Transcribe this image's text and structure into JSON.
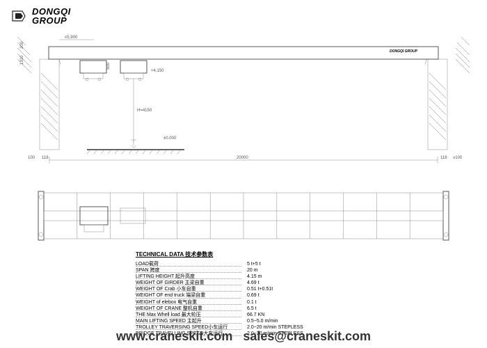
{
  "logo": {
    "line1": "DONGQI",
    "line2": "GROUP"
  },
  "colors": {
    "line_dark": "#333333",
    "line_med": "#555555",
    "line_light": "#888888",
    "hatch": "#777777",
    "background": "#ffffff",
    "text": "#333333"
  },
  "elevation": {
    "dimensions": {
      "span": "20000",
      "height_H": "H=4150",
      "left_small_1": "200",
      "left_small_2": "1310",
      "left_bottom_1": "100",
      "left_bottom_2": "118",
      "right_bottom_1": "118",
      "right_bottom_2": "≥100",
      "top_left": "≤5,900",
      "hoist_dim": "500",
      "hoist_level": "+4,150",
      "ground_level": "±0.000"
    }
  },
  "plan": {
    "grid_divisions": 12
  },
  "technical_data": {
    "title": "TECHNICAL DATA 技术参数表",
    "rows": [
      {
        "label": "LOAD载荷",
        "value": "5 t+5 t"
      },
      {
        "label": "SPAN 跨度",
        "value": "20 m"
      },
      {
        "label": "LIFTING HEIGHT 起升高度",
        "value": "4.15 m"
      },
      {
        "label": "WEIGHT OF GIRDER 主梁自重",
        "value": "4.69 t"
      },
      {
        "label": "WEIGHT OF Crab 小车自重",
        "value": "0.51 t+0.51t"
      },
      {
        "label": "WEIGHT OF end truck 端梁自重",
        "value": "0.69 t"
      },
      {
        "label": "WEIGHT of elebox 电气自重",
        "value": "0.1 t"
      },
      {
        "label": "WEIGHT OF CRANE 整机自重",
        "value": "6.5 t"
      },
      {
        "label": "THE Max Whell load 最大轮压",
        "value": "66.7 KN"
      },
      {
        "label": "MAIN LIFTING SPEED 主起升",
        "value": "0.5~5.0 m/min"
      },
      {
        "label": "TROLLEY TRAVERSING SPEED小车运行",
        "value": "2.0~20 m/min STEPLESS"
      },
      {
        "label": "BRIDGE TRAVELLING SPEED大车运行",
        "value": "2.0~20 m/min STEPLESS"
      }
    ]
  },
  "footer": {
    "url": "www.craneskit.com",
    "email": "sales@craneskit.com"
  }
}
